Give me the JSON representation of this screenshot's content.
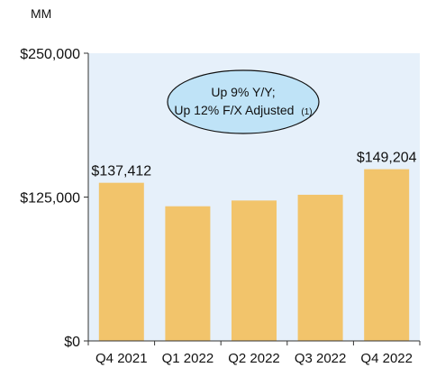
{
  "chart_data": {
    "type": "bar",
    "unit_label": "MM",
    "categories": [
      "Q4 2021",
      "Q1 2022",
      "Q2 2022",
      "Q3 2022",
      "Q4 2022"
    ],
    "values": [
      137412,
      117000,
      122000,
      127000,
      149204
    ],
    "data_labels": [
      "$137,412",
      "",
      "",
      "",
      "$149,204"
    ],
    "ylim": [
      0,
      250000
    ],
    "yticks": [
      0,
      125000,
      250000
    ],
    "ytick_labels": [
      "$0",
      "$125,000",
      "$250,000"
    ],
    "callout": {
      "line1": "Up 9% Y/Y;",
      "line2": "Up 12% F/X Adjusted",
      "note": "(1)"
    },
    "colors": {
      "bar": "#F2C46B",
      "plot_bg": "#E6F0FA",
      "callout_fill": "#BFE3F7",
      "axis": "#333333"
    }
  }
}
